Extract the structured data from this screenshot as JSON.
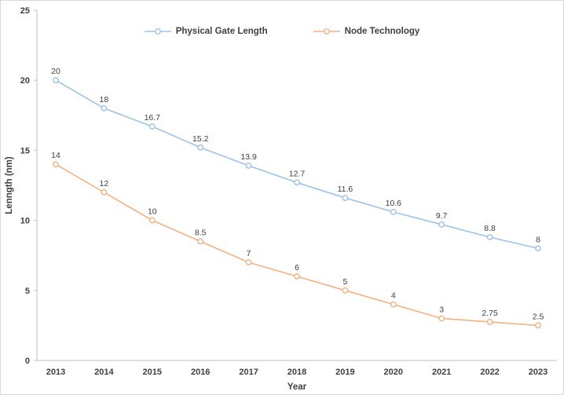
{
  "window": {
    "background": "#FFFFFF",
    "border_color": "#D9D9D9"
  },
  "chart_data": {
    "type": "line",
    "x": [
      "2013",
      "2014",
      "2015",
      "2016",
      "2017",
      "2018",
      "2019",
      "2020",
      "2021",
      "2022",
      "2023"
    ],
    "series": [
      {
        "name": "Physical Gate Length",
        "color": "#9DC3E6",
        "values": [
          20,
          18,
          16.7,
          15.2,
          13.9,
          12.7,
          11.6,
          10.6,
          9.7,
          8.8,
          8
        ]
      },
      {
        "name": "Node Technology",
        "color": "#F4B183",
        "values": [
          14,
          12,
          10,
          8.5,
          7,
          6,
          5,
          4,
          3,
          2.75,
          2.5
        ]
      }
    ],
    "title": "",
    "xlabel": "Year",
    "ylabel": "Lenngth (nm)",
    "ylim": [
      0,
      25
    ],
    "yticks": [
      0,
      5,
      10,
      15,
      20,
      25
    ],
    "grid": false,
    "legend_position": "top-center",
    "data_labels": true,
    "marker": "open-circle",
    "label_color": "#404040",
    "axis_color": "#BFBFBF"
  }
}
